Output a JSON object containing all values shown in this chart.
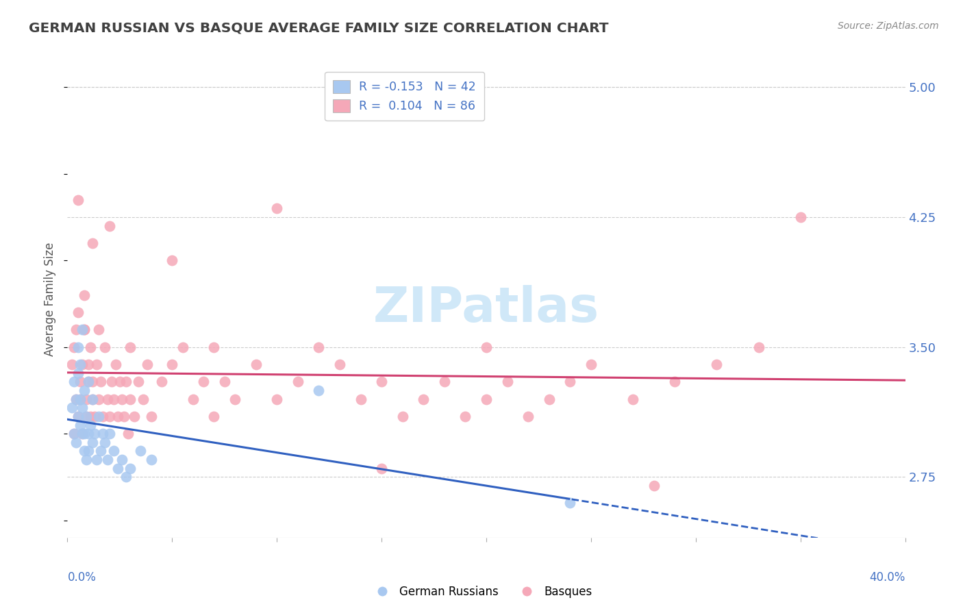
{
  "title": "GERMAN RUSSIAN VS BASQUE AVERAGE FAMILY SIZE CORRELATION CHART",
  "source": "Source: ZipAtlas.com",
  "ylabel": "Average Family Size",
  "yticks": [
    2.75,
    3.5,
    4.25,
    5.0
  ],
  "xlim": [
    0.0,
    0.4
  ],
  "ylim": [
    2.4,
    5.15
  ],
  "blue_color": "#A8C8F0",
  "pink_color": "#F5A8B8",
  "blue_line_color": "#3060C0",
  "pink_line_color": "#D04070",
  "legend_r1_text": "R = -0.153   N = 42",
  "legend_r2_text": "R =  0.104   N = 86",
  "axis_label_color": "#4472C4",
  "title_color": "#404040",
  "source_color": "#888888",
  "grid_color": "#CCCCCC",
  "watermark_color": "#D0E8F8",
  "gr_x": [
    0.002,
    0.003,
    0.003,
    0.004,
    0.004,
    0.005,
    0.005,
    0.005,
    0.006,
    0.006,
    0.006,
    0.007,
    0.007,
    0.007,
    0.008,
    0.008,
    0.008,
    0.009,
    0.009,
    0.01,
    0.01,
    0.01,
    0.011,
    0.012,
    0.012,
    0.013,
    0.014,
    0.015,
    0.016,
    0.017,
    0.018,
    0.019,
    0.02,
    0.022,
    0.024,
    0.026,
    0.028,
    0.03,
    0.035,
    0.04,
    0.12,
    0.24
  ],
  "gr_y": [
    3.15,
    3.3,
    3.0,
    3.2,
    2.95,
    3.35,
    3.1,
    3.5,
    3.2,
    3.05,
    3.4,
    3.15,
    3.0,
    3.6,
    3.25,
    3.0,
    2.9,
    3.1,
    2.85,
    3.3,
    3.0,
    2.9,
    3.05,
    3.2,
    2.95,
    3.0,
    2.85,
    3.1,
    2.9,
    3.0,
    2.95,
    2.85,
    3.0,
    2.9,
    2.8,
    2.85,
    2.75,
    2.8,
    2.9,
    2.85,
    3.25,
    2.6
  ],
  "bq_x": [
    0.002,
    0.003,
    0.003,
    0.004,
    0.004,
    0.005,
    0.005,
    0.006,
    0.006,
    0.007,
    0.007,
    0.008,
    0.008,
    0.009,
    0.009,
    0.01,
    0.01,
    0.011,
    0.011,
    0.012,
    0.012,
    0.013,
    0.014,
    0.015,
    0.015,
    0.016,
    0.017,
    0.018,
    0.019,
    0.02,
    0.021,
    0.022,
    0.023,
    0.024,
    0.025,
    0.026,
    0.027,
    0.028,
    0.029,
    0.03,
    0.032,
    0.034,
    0.036,
    0.038,
    0.04,
    0.045,
    0.05,
    0.055,
    0.06,
    0.065,
    0.07,
    0.075,
    0.08,
    0.09,
    0.1,
    0.11,
    0.12,
    0.13,
    0.14,
    0.15,
    0.16,
    0.17,
    0.18,
    0.19,
    0.2,
    0.21,
    0.22,
    0.23,
    0.24,
    0.25,
    0.27,
    0.29,
    0.31,
    0.33,
    0.005,
    0.008,
    0.012,
    0.02,
    0.03,
    0.05,
    0.07,
    0.1,
    0.15,
    0.2,
    0.28,
    0.35
  ],
  "bq_y": [
    3.4,
    3.5,
    3.0,
    3.6,
    3.2,
    3.1,
    3.7,
    3.3,
    3.2,
    3.4,
    3.0,
    3.6,
    3.8,
    3.2,
    3.1,
    3.3,
    3.4,
    3.5,
    3.1,
    3.2,
    3.3,
    3.1,
    3.4,
    3.2,
    3.6,
    3.3,
    3.1,
    3.5,
    3.2,
    3.1,
    3.3,
    3.2,
    3.4,
    3.1,
    3.3,
    3.2,
    3.1,
    3.3,
    3.0,
    3.2,
    3.1,
    3.3,
    3.2,
    3.4,
    3.1,
    3.3,
    3.4,
    3.5,
    3.2,
    3.3,
    3.1,
    3.3,
    3.2,
    3.4,
    3.2,
    3.3,
    3.5,
    3.4,
    3.2,
    3.3,
    3.1,
    3.2,
    3.3,
    3.1,
    3.2,
    3.3,
    3.1,
    3.2,
    3.3,
    3.4,
    3.2,
    3.3,
    3.4,
    3.5,
    4.35,
    3.6,
    4.1,
    4.2,
    3.5,
    4.0,
    3.5,
    4.3,
    2.8,
    3.5,
    2.7,
    4.25
  ]
}
